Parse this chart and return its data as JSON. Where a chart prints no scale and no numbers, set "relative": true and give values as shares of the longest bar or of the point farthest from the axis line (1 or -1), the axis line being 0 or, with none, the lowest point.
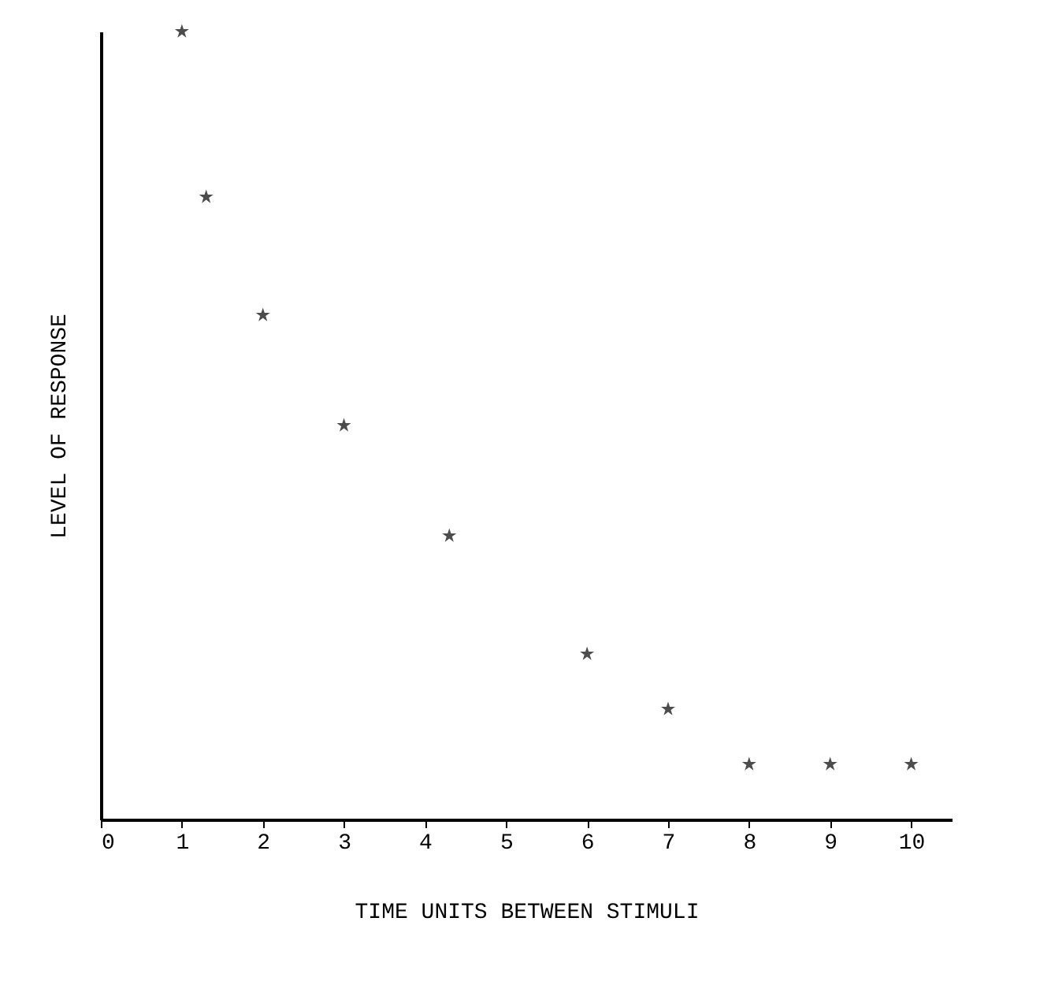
{
  "chart_data": {
    "type": "scatter",
    "relative": true,
    "xlabel": "TIME UNITS BETWEEN STIMULI",
    "ylabel": "LEVEL OF RESPONSE",
    "x": [
      1,
      1.3,
      2,
      3,
      4.3,
      6,
      7,
      8,
      9,
      10
    ],
    "series": [
      {
        "color": "#000000",
        "values": [
          1,
          0.79,
          0.64,
          0.5,
          0.36,
          0.21,
          0.14,
          0.07,
          0.07,
          0.07
        ]
      }
    ],
    "xlim": [
      0,
      10.5
    ],
    "xticks": [
      0,
      1,
      2,
      3,
      4,
      5,
      6,
      7,
      8,
      9,
      10
    ],
    "grid": false,
    "marker": "star"
  }
}
